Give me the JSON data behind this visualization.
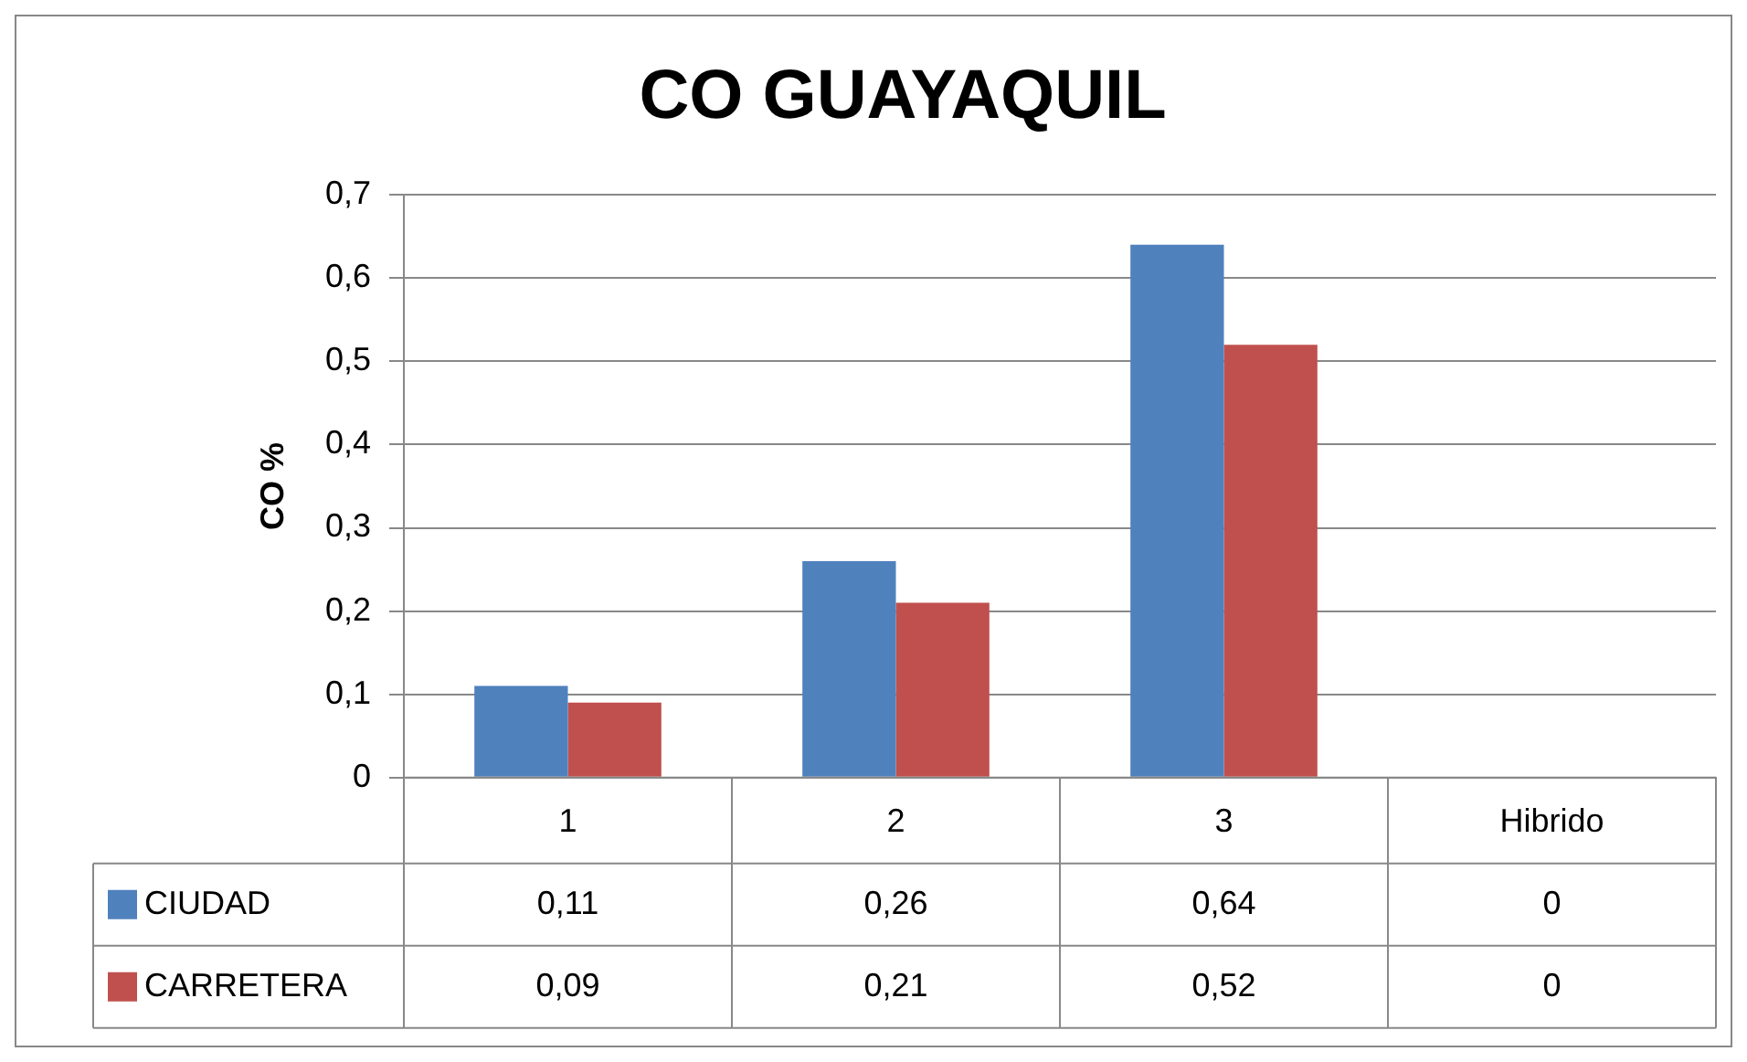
{
  "chart_data": {
    "type": "bar",
    "title": "CO GUAYAQUIL",
    "ylabel": "CO %",
    "categories": [
      "1",
      "2",
      "3",
      "Hibrido"
    ],
    "series": [
      {
        "name": "CIUDAD",
        "color": "#4f81bd",
        "values": [
          0.11,
          0.26,
          0.64,
          0
        ],
        "value_labels": [
          "0,11",
          "0,26",
          "0,64",
          "0"
        ]
      },
      {
        "name": "CARRETERA",
        "color": "#c0504d",
        "values": [
          0.09,
          0.21,
          0.52,
          0
        ],
        "value_labels": [
          "0,09",
          "0,21",
          "0,52",
          "0"
        ]
      }
    ],
    "ylim": [
      0,
      0.7
    ],
    "yticks": [
      0,
      {
        "value": 0.1,
        "label": "0,1"
      },
      {
        "value": 0.2,
        "label": "0,2"
      },
      {
        "value": 0.3,
        "label": "0,3"
      },
      {
        "value": 0.4,
        "label": "0,4"
      },
      {
        "value": 0.5,
        "label": "0,5"
      },
      {
        "value": 0.6,
        "label": "0,6"
      },
      {
        "value": 0.7,
        "label": "0,7"
      }
    ],
    "grid": "y",
    "legend": "bottom",
    "data_labels": true
  }
}
